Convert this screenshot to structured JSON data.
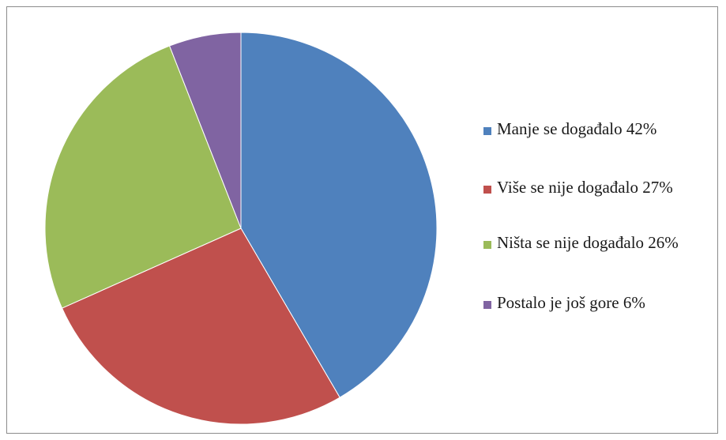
{
  "chart_data": {
    "type": "pie",
    "title": "",
    "slices": [
      {
        "label": "Manje se događalo 42%",
        "value": 42,
        "color": "#4f81bd"
      },
      {
        "label": "Više se nije događalo 27%",
        "value": 27,
        "color": "#c0504d"
      },
      {
        "label": "Ništa se nije događalo 26%",
        "value": 26,
        "color": "#9bbb59"
      },
      {
        "label": "Postalo je još gore 6%",
        "value": 6,
        "color": "#8064a2"
      }
    ],
    "legend_position": "right",
    "start_angle": "12 o'clock",
    "direction": "clockwise"
  }
}
